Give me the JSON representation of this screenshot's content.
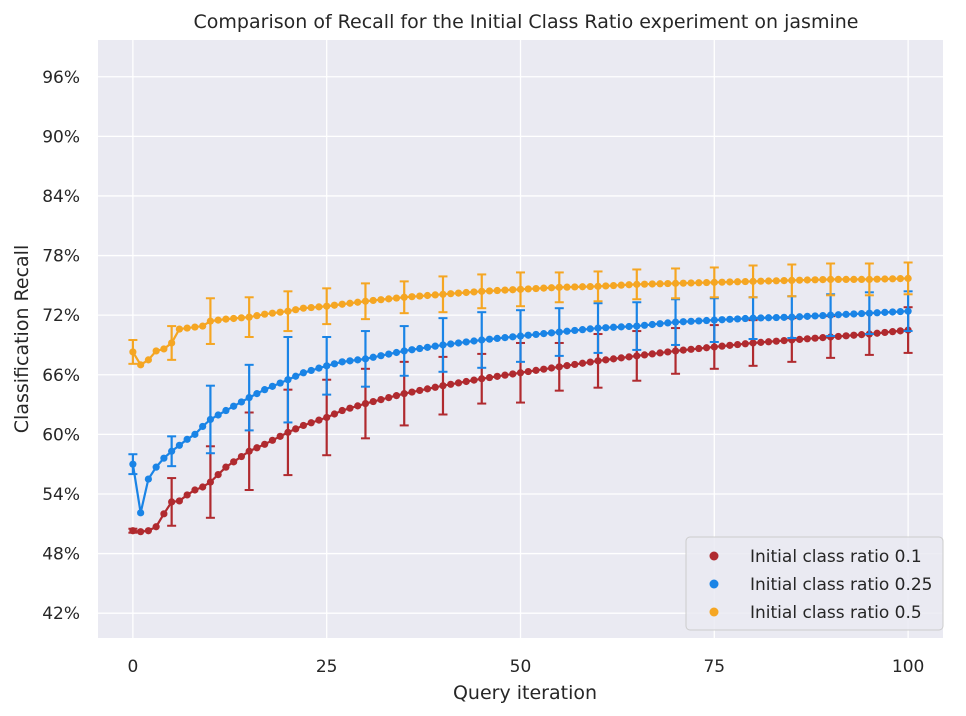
{
  "chart_data": {
    "type": "line",
    "title": "Comparison of Recall for the Initial Class Ratio experiment on jasmine",
    "xlabel": "Query iteration",
    "ylabel": "Classification Recall",
    "xlim": [
      -4.5,
      104.5
    ],
    "ylim": [
      0.395,
      0.997
    ],
    "xticks": [
      0,
      25,
      50,
      75,
      100
    ],
    "xtick_labels": [
      "0",
      "25",
      "50",
      "75",
      "100"
    ],
    "yticks": [
      0.42,
      0.48,
      0.54,
      0.6,
      0.66,
      0.72,
      0.78,
      0.84,
      0.9,
      0.96
    ],
    "ytick_labels": [
      "42%",
      "48%",
      "54%",
      "60%",
      "66%",
      "72%",
      "78%",
      "84%",
      "90%",
      "96%"
    ],
    "grid": true,
    "background": "#eaeaf2",
    "legend_position": "lower-right",
    "errorbar_every": 5,
    "series": [
      {
        "name": "Initial class ratio 0.1",
        "color": "#b02a2f",
        "anchors": [
          [
            0,
            0.503
          ],
          [
            1,
            0.502
          ],
          [
            2,
            0.503
          ],
          [
            3,
            0.507
          ],
          [
            4,
            0.52
          ],
          [
            5,
            0.532
          ],
          [
            6,
            0.533
          ],
          [
            7,
            0.539
          ],
          [
            8,
            0.544
          ],
          [
            9,
            0.547
          ],
          [
            10,
            0.552
          ],
          [
            12,
            0.567
          ],
          [
            15,
            0.583
          ],
          [
            17,
            0.59
          ],
          [
            20,
            0.602
          ],
          [
            22,
            0.609
          ],
          [
            25,
            0.617
          ],
          [
            27,
            0.624
          ],
          [
            30,
            0.631
          ],
          [
            35,
            0.641
          ],
          [
            40,
            0.649
          ],
          [
            45,
            0.656
          ],
          [
            50,
            0.662
          ],
          [
            55,
            0.668
          ],
          [
            60,
            0.674
          ],
          [
            65,
            0.679
          ],
          [
            70,
            0.684
          ],
          [
            75,
            0.688
          ],
          [
            80,
            0.692
          ],
          [
            85,
            0.695
          ],
          [
            90,
            0.698
          ],
          [
            95,
            0.701
          ],
          [
            100,
            0.705
          ]
        ],
        "errors": [
          [
            0,
            0.002
          ],
          [
            5,
            0.024
          ],
          [
            10,
            0.036
          ],
          [
            15,
            0.039
          ],
          [
            20,
            0.043
          ],
          [
            25,
            0.038
          ],
          [
            30,
            0.035
          ],
          [
            35,
            0.032
          ],
          [
            40,
            0.029
          ],
          [
            45,
            0.025
          ],
          [
            50,
            0.03
          ],
          [
            55,
            0.024
          ],
          [
            60,
            0.027
          ],
          [
            65,
            0.025
          ],
          [
            70,
            0.023
          ],
          [
            75,
            0.022
          ],
          [
            80,
            0.023
          ],
          [
            85,
            0.022
          ],
          [
            90,
            0.021
          ],
          [
            95,
            0.021
          ],
          [
            100,
            0.023
          ]
        ]
      },
      {
        "name": "Initial class ratio 0.25",
        "color": "#1a84e6",
        "anchors": [
          [
            0,
            0.57
          ],
          [
            1,
            0.521
          ],
          [
            2,
            0.555
          ],
          [
            3,
            0.567
          ],
          [
            4,
            0.576
          ],
          [
            5,
            0.583
          ],
          [
            6,
            0.589
          ],
          [
            7,
            0.595
          ],
          [
            8,
            0.6
          ],
          [
            9,
            0.608
          ],
          [
            10,
            0.615
          ],
          [
            12,
            0.624
          ],
          [
            15,
            0.637
          ],
          [
            17,
            0.645
          ],
          [
            20,
            0.655
          ],
          [
            22,
            0.662
          ],
          [
            25,
            0.669
          ],
          [
            27,
            0.673
          ],
          [
            30,
            0.676
          ],
          [
            35,
            0.684
          ],
          [
            40,
            0.69
          ],
          [
            45,
            0.695
          ],
          [
            50,
            0.699
          ],
          [
            55,
            0.703
          ],
          [
            60,
            0.707
          ],
          [
            65,
            0.709
          ],
          [
            70,
            0.713
          ],
          [
            75,
            0.715
          ],
          [
            80,
            0.717
          ],
          [
            85,
            0.718
          ],
          [
            90,
            0.72
          ],
          [
            95,
            0.722
          ],
          [
            100,
            0.724
          ]
        ],
        "errors": [
          [
            0,
            0.01
          ],
          [
            5,
            0.015
          ],
          [
            10,
            0.034
          ],
          [
            15,
            0.033
          ],
          [
            20,
            0.043
          ],
          [
            25,
            0.029
          ],
          [
            30,
            0.028
          ],
          [
            35,
            0.025
          ],
          [
            40,
            0.027
          ],
          [
            45,
            0.028
          ],
          [
            50,
            0.026
          ],
          [
            55,
            0.024
          ],
          [
            60,
            0.025
          ],
          [
            65,
            0.024
          ],
          [
            70,
            0.023
          ],
          [
            75,
            0.022
          ],
          [
            80,
            0.021
          ],
          [
            85,
            0.021
          ],
          [
            90,
            0.021
          ],
          [
            95,
            0.021
          ],
          [
            100,
            0.02
          ]
        ]
      },
      {
        "name": "Initial class ratio 0.5",
        "color": "#f5a623",
        "anchors": [
          [
            0,
            0.683
          ],
          [
            1,
            0.67
          ],
          [
            2,
            0.675
          ],
          [
            3,
            0.684
          ],
          [
            4,
            0.686
          ],
          [
            5,
            0.692
          ],
          [
            6,
            0.706
          ],
          [
            7,
            0.707
          ],
          [
            8,
            0.708
          ],
          [
            9,
            0.709
          ],
          [
            10,
            0.714
          ],
          [
            12,
            0.716
          ],
          [
            15,
            0.718
          ],
          [
            17,
            0.721
          ],
          [
            20,
            0.724
          ],
          [
            22,
            0.727
          ],
          [
            25,
            0.729
          ],
          [
            27,
            0.731
          ],
          [
            30,
            0.734
          ],
          [
            35,
            0.738
          ],
          [
            40,
            0.741
          ],
          [
            45,
            0.744
          ],
          [
            50,
            0.746
          ],
          [
            55,
            0.748
          ],
          [
            60,
            0.749
          ],
          [
            65,
            0.751
          ],
          [
            70,
            0.752
          ],
          [
            75,
            0.753
          ],
          [
            80,
            0.754
          ],
          [
            85,
            0.755
          ],
          [
            90,
            0.756
          ],
          [
            95,
            0.756
          ],
          [
            100,
            0.757
          ]
        ],
        "errors": [
          [
            0,
            0.012
          ],
          [
            5,
            0.017
          ],
          [
            10,
            0.023
          ],
          [
            15,
            0.02
          ],
          [
            20,
            0.02
          ],
          [
            25,
            0.018
          ],
          [
            30,
            0.018
          ],
          [
            35,
            0.016
          ],
          [
            40,
            0.018
          ],
          [
            45,
            0.017
          ],
          [
            50,
            0.017
          ],
          [
            55,
            0.015
          ],
          [
            60,
            0.015
          ],
          [
            65,
            0.015
          ],
          [
            70,
            0.015
          ],
          [
            75,
            0.015
          ],
          [
            80,
            0.016
          ],
          [
            85,
            0.016
          ],
          [
            90,
            0.016
          ],
          [
            95,
            0.016
          ],
          [
            100,
            0.016
          ]
        ]
      }
    ]
  }
}
